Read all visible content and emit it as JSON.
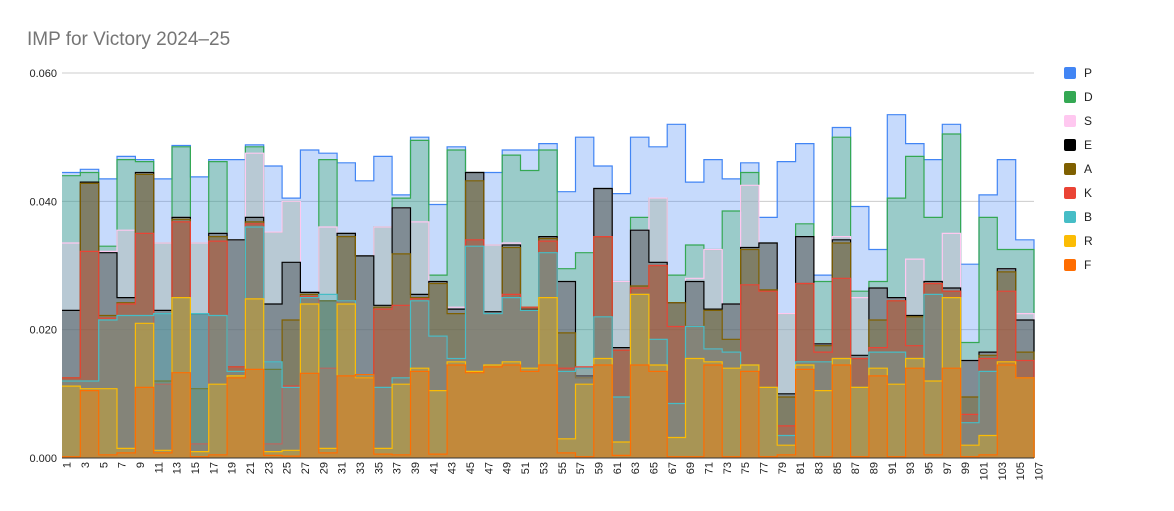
{
  "chart_data": {
    "type": "area",
    "title": "IMP for Victory 2024–25",
    "xlabel": "",
    "ylabel": "",
    "ylim": [
      0,
      0.06
    ],
    "y_ticks": [
      "0.000",
      "0.020",
      "0.040",
      "0.060"
    ],
    "x": [
      1,
      2,
      3,
      4,
      5,
      6,
      7,
      8,
      9,
      10,
      11,
      12,
      13,
      14,
      15,
      16,
      17,
      18,
      19,
      20,
      21,
      22,
      23,
      24,
      25,
      26,
      27,
      28,
      29,
      30,
      31,
      32,
      33,
      34,
      35,
      36,
      37,
      38,
      39,
      40,
      41,
      42,
      43,
      44,
      45,
      46,
      47,
      48,
      49,
      50,
      51,
      52,
      53,
      54,
      55,
      56,
      57,
      58,
      59,
      60,
      61,
      62,
      63,
      64,
      65,
      66,
      67,
      68,
      69,
      70,
      71,
      72,
      73,
      74,
      75,
      76,
      77,
      78,
      79,
      80,
      81,
      82,
      83,
      84,
      85,
      86,
      87,
      88,
      89,
      90,
      91,
      92,
      93,
      94,
      95,
      96,
      97,
      98,
      99,
      100,
      101,
      102,
      103,
      104,
      105,
      106
    ],
    "x_tick_labels": [
      "1",
      "3",
      "5",
      "7",
      "9",
      "11",
      "13",
      "15",
      "17",
      "19",
      "21",
      "23",
      "25",
      "27",
      "29",
      "31",
      "33",
      "35",
      "37",
      "39",
      "41",
      "43",
      "45",
      "47",
      "49",
      "51",
      "53",
      "55",
      "57",
      "59",
      "61",
      "63",
      "65",
      "67",
      "69",
      "71",
      "73",
      "75",
      "77",
      "79",
      "81",
      "83",
      "85",
      "87",
      "89",
      "91",
      "93",
      "95",
      "97",
      "99",
      "101",
      "103",
      "105",
      "107"
    ],
    "series": [
      {
        "name": "F",
        "color": "#ff6d01",
        "values": [
          0.0002,
          0.0002,
          0.0105,
          0.0105,
          0.0005,
          0.0005,
          0.0008,
          0.0008,
          0.011,
          0.011,
          0.0008,
          0.0008,
          0.0133,
          0.0133,
          0.0002,
          0.0002,
          0.0005,
          0.0005,
          0.0125,
          0.0125,
          0.0138,
          0.0138,
          0.0004,
          0.0004,
          0.0003,
          0.0003,
          0.0132,
          0.0132,
          0.0008,
          0.0008,
          0.0128,
          0.0128,
          0.013,
          0.013,
          0.0006,
          0.0006,
          0.0005,
          0.0005,
          0.0135,
          0.0135,
          0.0006,
          0.0006,
          0.0145,
          0.0145,
          0.0133,
          0.0133,
          0.0142,
          0.0142,
          0.0145,
          0.0145,
          0.0135,
          0.0135,
          0.0145,
          0.0145,
          0.0008,
          0.0008,
          0.0002,
          0.0002,
          0.0145,
          0.0145,
          0.0004,
          0.0004,
          0.0145,
          0.0145,
          0.0135,
          0.0135,
          0.0002,
          0.0002,
          0.0002,
          0.0002,
          0.0145,
          0.0145,
          0.0002,
          0.0002,
          0.0135,
          0.0135,
          0.0002,
          0.0002,
          0.0005,
          0.0005,
          0.0138,
          0.0138,
          0.0002,
          0.0002,
          0.0145,
          0.0145,
          0.0002,
          0.0002,
          0.0128,
          0.0128,
          0.0002,
          0.0002,
          0.014,
          0.014,
          0.0005,
          0.0005,
          0.014,
          0.014,
          0.0002,
          0.0002,
          0.0005,
          0.0005,
          0.0145,
          0.0145,
          0.0125,
          0.0125
        ]
      },
      {
        "name": "R",
        "color": "#fbbc04",
        "values": [
          0.0112,
          0.0112,
          0.0108,
          0.0108,
          0.0108,
          0.0108,
          0.0015,
          0.0015,
          0.021,
          0.021,
          0.0012,
          0.0012,
          0.025,
          0.025,
          0.001,
          0.001,
          0.0115,
          0.0115,
          0.0128,
          0.0128,
          0.0248,
          0.0248,
          0.001,
          0.001,
          0.0012,
          0.0012,
          0.024,
          0.024,
          0.0015,
          0.0015,
          0.024,
          0.024,
          0.0125,
          0.0125,
          0.0015,
          0.0015,
          0.0115,
          0.0115,
          0.014,
          0.014,
          0.0105,
          0.0105,
          0.015,
          0.015,
          0.0135,
          0.0135,
          0.0145,
          0.0145,
          0.015,
          0.015,
          0.014,
          0.014,
          0.025,
          0.025,
          0.003,
          0.003,
          0.0115,
          0.0115,
          0.0155,
          0.0155,
          0.0025,
          0.0025,
          0.0255,
          0.0255,
          0.0145,
          0.0145,
          0.0032,
          0.0032,
          0.0155,
          0.0155,
          0.015,
          0.015,
          0.014,
          0.014,
          0.0145,
          0.0145,
          0.011,
          0.011,
          0.002,
          0.002,
          0.0145,
          0.0145,
          0.0105,
          0.0105,
          0.0155,
          0.0155,
          0.011,
          0.011,
          0.014,
          0.014,
          0.0115,
          0.0115,
          0.0155,
          0.0155,
          0.012,
          0.012,
          0.025,
          0.025,
          0.002,
          0.002,
          0.0035,
          0.0035,
          0.015,
          0.015,
          0.0125,
          0.0125
        ]
      },
      {
        "name": "B",
        "color": "#46bdc6",
        "values": [
          0.012,
          0.012,
          0.012,
          0.012,
          0.0215,
          0.0215,
          0.0222,
          0.0222,
          0.0222,
          0.0222,
          0.0225,
          0.0225,
          0.025,
          0.025,
          0.0225,
          0.0225,
          0.0222,
          0.0222,
          0.0135,
          0.0135,
          0.036,
          0.036,
          0.015,
          0.015,
          0.011,
          0.011,
          0.025,
          0.025,
          0.0255,
          0.0255,
          0.0245,
          0.0245,
          0.0128,
          0.0128,
          0.011,
          0.011,
          0.0125,
          0.0125,
          0.0245,
          0.0245,
          0.019,
          0.019,
          0.0155,
          0.0155,
          0.033,
          0.033,
          0.0225,
          0.0225,
          0.025,
          0.025,
          0.023,
          0.023,
          0.032,
          0.032,
          0.0135,
          0.0135,
          0.014,
          0.014,
          0.022,
          0.022,
          0.0095,
          0.0095,
          0.0255,
          0.0255,
          0.0185,
          0.0185,
          0.0085,
          0.0085,
          0.0205,
          0.0205,
          0.017,
          0.017,
          0.0165,
          0.0165,
          0.0145,
          0.0145,
          0.011,
          0.011,
          0.0035,
          0.0035,
          0.015,
          0.015,
          0.015,
          0.015,
          0.0155,
          0.0155,
          0.011,
          0.011,
          0.0165,
          0.0165,
          0.0165,
          0.0165,
          0.0155,
          0.0155,
          0.0255,
          0.0255,
          0.025,
          0.025,
          0.0055,
          0.0055,
          0.0135,
          0.0135,
          0.0145,
          0.0145,
          0.0125,
          0.0125
        ]
      },
      {
        "name": "K",
        "color": "#ea4335",
        "values": [
          0.0125,
          0.0125,
          0.0322,
          0.0322,
          0.0218,
          0.0218,
          0.024,
          0.024,
          0.035,
          0.035,
          0.0115,
          0.0115,
          0.0368,
          0.0368,
          0.0022,
          0.0022,
          0.0338,
          0.0338,
          0.0142,
          0.0142,
          0.0365,
          0.0365,
          0.0022,
          0.0022,
          0.0112,
          0.0112,
          0.0252,
          0.0252,
          0.014,
          0.014,
          0.0245,
          0.0245,
          0.0128,
          0.0128,
          0.0232,
          0.0232,
          0.0238,
          0.0238,
          0.0248,
          0.0248,
          0.019,
          0.019,
          0.0155,
          0.0155,
          0.034,
          0.034,
          0.0225,
          0.0225,
          0.0255,
          0.0255,
          0.0235,
          0.0235,
          0.0338,
          0.0338,
          0.014,
          0.014,
          0.0142,
          0.0142,
          0.0345,
          0.0345,
          0.0168,
          0.0168,
          0.0265,
          0.0265,
          0.03,
          0.03,
          0.0205,
          0.0205,
          0.0205,
          0.0205,
          0.017,
          0.017,
          0.0165,
          0.0165,
          0.027,
          0.027,
          0.026,
          0.026,
          0.005,
          0.005,
          0.0272,
          0.0272,
          0.0165,
          0.0165,
          0.028,
          0.028,
          0.0155,
          0.0155,
          0.0172,
          0.0172,
          0.0245,
          0.0245,
          0.0175,
          0.0175,
          0.0272,
          0.0272,
          0.026,
          0.026,
          0.0068,
          0.0068,
          0.0155,
          0.0155,
          0.026,
          0.026,
          0.0152,
          0.0152
        ]
      },
      {
        "name": "A",
        "color": "#7f6000",
        "values": [
          0.0125,
          0.0125,
          0.0428,
          0.0428,
          0.0222,
          0.0222,
          0.0242,
          0.0242,
          0.0442,
          0.0442,
          0.012,
          0.012,
          0.0372,
          0.0372,
          0.0108,
          0.0108,
          0.0345,
          0.0345,
          0.0142,
          0.0142,
          0.0368,
          0.0368,
          0.0138,
          0.0138,
          0.0215,
          0.0215,
          0.0255,
          0.0255,
          0.0245,
          0.0245,
          0.0345,
          0.0345,
          0.0128,
          0.0128,
          0.0235,
          0.0235,
          0.0318,
          0.0318,
          0.025,
          0.025,
          0.0272,
          0.0272,
          0.0225,
          0.0225,
          0.0432,
          0.0432,
          0.0225,
          0.0225,
          0.0328,
          0.0328,
          0.0235,
          0.0235,
          0.0342,
          0.0342,
          0.0195,
          0.0195,
          0.0125,
          0.0125,
          0.0345,
          0.0345,
          0.0168,
          0.0168,
          0.0268,
          0.0268,
          0.03,
          0.03,
          0.0242,
          0.0242,
          0.0205,
          0.0205,
          0.023,
          0.023,
          0.0185,
          0.0185,
          0.0325,
          0.0325,
          0.0262,
          0.0262,
          0.0095,
          0.0095,
          0.0272,
          0.0272,
          0.0175,
          0.0175,
          0.0335,
          0.0335,
          0.0155,
          0.0155,
          0.0215,
          0.0215,
          0.0245,
          0.0245,
          0.022,
          0.022,
          0.0272,
          0.0272,
          0.026,
          0.026,
          0.0095,
          0.0095,
          0.016,
          0.016,
          0.029,
          0.029,
          0.0165,
          0.0165
        ]
      },
      {
        "name": "E",
        "color": "#000000",
        "values": [
          0.023,
          0.023,
          0.043,
          0.043,
          0.032,
          0.032,
          0.025,
          0.025,
          0.0445,
          0.0445,
          0.023,
          0.023,
          0.0375,
          0.0375,
          0.0225,
          0.0225,
          0.035,
          0.035,
          0.034,
          0.034,
          0.0375,
          0.0375,
          0.024,
          0.024,
          0.0305,
          0.0305,
          0.0258,
          0.0258,
          0.0245,
          0.0245,
          0.035,
          0.035,
          0.0315,
          0.0315,
          0.0238,
          0.0238,
          0.039,
          0.039,
          0.0255,
          0.0255,
          0.0275,
          0.0275,
          0.0232,
          0.0232,
          0.0445,
          0.0445,
          0.0228,
          0.0228,
          0.0332,
          0.0332,
          0.0232,
          0.0232,
          0.0345,
          0.0345,
          0.0275,
          0.0275,
          0.0128,
          0.0128,
          0.042,
          0.042,
          0.0172,
          0.0172,
          0.0355,
          0.0355,
          0.0305,
          0.0305,
          0.0242,
          0.0242,
          0.0275,
          0.0275,
          0.0232,
          0.0232,
          0.024,
          0.024,
          0.0328,
          0.0328,
          0.0335,
          0.0335,
          0.01,
          0.01,
          0.0345,
          0.0345,
          0.0178,
          0.0178,
          0.034,
          0.034,
          0.016,
          0.016,
          0.0265,
          0.0265,
          0.025,
          0.025,
          0.0222,
          0.0222,
          0.0275,
          0.0275,
          0.0265,
          0.0265,
          0.0152,
          0.0152,
          0.0165,
          0.0165,
          0.0295,
          0.0295,
          0.0215,
          0.0215
        ]
      },
      {
        "name": "S",
        "color": "#ffc8f0",
        "values": [
          0.0335,
          0.0335,
          0.043,
          0.043,
          0.0322,
          0.0322,
          0.0355,
          0.0355,
          0.0445,
          0.0445,
          0.0335,
          0.0335,
          0.0375,
          0.0375,
          0.0335,
          0.0335,
          0.035,
          0.035,
          0.034,
          0.034,
          0.0475,
          0.0475,
          0.0352,
          0.0352,
          0.04,
          0.04,
          0.0258,
          0.0258,
          0.036,
          0.036,
          0.035,
          0.035,
          0.0315,
          0.0315,
          0.036,
          0.036,
          0.039,
          0.039,
          0.0368,
          0.0368,
          0.0275,
          0.0275,
          0.0235,
          0.0235,
          0.0445,
          0.0445,
          0.0332,
          0.0332,
          0.0335,
          0.0335,
          0.0232,
          0.0232,
          0.0345,
          0.0345,
          0.0275,
          0.0275,
          0.0128,
          0.0128,
          0.042,
          0.042,
          0.0275,
          0.0275,
          0.0355,
          0.0355,
          0.0405,
          0.0405,
          0.0242,
          0.0242,
          0.028,
          0.028,
          0.0325,
          0.0325,
          0.024,
          0.024,
          0.0425,
          0.0425,
          0.0335,
          0.0335,
          0.0225,
          0.0225,
          0.0345,
          0.0345,
          0.0178,
          0.0178,
          0.0345,
          0.0345,
          0.025,
          0.025,
          0.0265,
          0.0265,
          0.025,
          0.025,
          0.031,
          0.031,
          0.0275,
          0.0275,
          0.035,
          0.035,
          0.0152,
          0.0152,
          0.0165,
          0.0165,
          0.0295,
          0.0295,
          0.0225,
          0.0225
        ]
      },
      {
        "name": "D",
        "color": "#34a853",
        "values": [
          0.044,
          0.044,
          0.0445,
          0.0445,
          0.033,
          0.033,
          0.0465,
          0.0465,
          0.0462,
          0.0462,
          0.0335,
          0.0335,
          0.0485,
          0.0485,
          0.0335,
          0.0335,
          0.0462,
          0.0462,
          0.034,
          0.034,
          0.0485,
          0.0485,
          0.0352,
          0.0352,
          0.04,
          0.04,
          0.0258,
          0.0258,
          0.0465,
          0.0465,
          0.035,
          0.035,
          0.0315,
          0.0315,
          0.036,
          0.036,
          0.0405,
          0.0405,
          0.0495,
          0.0495,
          0.0285,
          0.0285,
          0.048,
          0.048,
          0.0445,
          0.0445,
          0.0332,
          0.0332,
          0.0472,
          0.0472,
          0.0448,
          0.0448,
          0.048,
          0.048,
          0.0295,
          0.0295,
          0.032,
          0.032,
          0.042,
          0.042,
          0.0275,
          0.0275,
          0.0375,
          0.0375,
          0.0405,
          0.0405,
          0.0285,
          0.0285,
          0.0332,
          0.0332,
          0.0325,
          0.0325,
          0.0385,
          0.0385,
          0.0445,
          0.0445,
          0.0335,
          0.0335,
          0.0225,
          0.0225,
          0.0365,
          0.0365,
          0.0275,
          0.0275,
          0.05,
          0.05,
          0.026,
          0.026,
          0.0275,
          0.0275,
          0.0405,
          0.0405,
          0.047,
          0.047,
          0.0375,
          0.0375,
          0.0505,
          0.0505,
          0.018,
          0.018,
          0.0375,
          0.0375,
          0.0325,
          0.0325,
          0.0325,
          0.0325
        ]
      },
      {
        "name": "P",
        "color": "#4285f4",
        "values": [
          0.0445,
          0.0445,
          0.045,
          0.045,
          0.0435,
          0.0435,
          0.047,
          0.047,
          0.0465,
          0.0465,
          0.0435,
          0.0435,
          0.0487,
          0.0487,
          0.0438,
          0.0438,
          0.0465,
          0.0465,
          0.0465,
          0.0465,
          0.0488,
          0.0488,
          0.0455,
          0.0455,
          0.0405,
          0.0405,
          0.048,
          0.048,
          0.0475,
          0.0475,
          0.046,
          0.046,
          0.0432,
          0.0432,
          0.047,
          0.047,
          0.041,
          0.041,
          0.05,
          0.05,
          0.0395,
          0.0395,
          0.0485,
          0.0485,
          0.0445,
          0.0445,
          0.0445,
          0.0445,
          0.048,
          0.048,
          0.048,
          0.048,
          0.049,
          0.049,
          0.0415,
          0.0415,
          0.05,
          0.05,
          0.0455,
          0.0455,
          0.0412,
          0.0412,
          0.05,
          0.05,
          0.0485,
          0.0485,
          0.052,
          0.052,
          0.043,
          0.043,
          0.0465,
          0.0465,
          0.0435,
          0.0435,
          0.046,
          0.046,
          0.0375,
          0.0375,
          0.0462,
          0.0462,
          0.049,
          0.049,
          0.0285,
          0.0285,
          0.0515,
          0.0515,
          0.0392,
          0.0392,
          0.0325,
          0.0325,
          0.0535,
          0.0535,
          0.049,
          0.049,
          0.0465,
          0.0465,
          0.052,
          0.052,
          0.0302,
          0.0302,
          0.041,
          0.041,
          0.0465,
          0.0465,
          0.034,
          0.034
        ]
      }
    ],
    "legend": {
      "position": "right",
      "entries": [
        "P",
        "D",
        "S",
        "E",
        "A",
        "K",
        "B",
        "R",
        "F"
      ]
    },
    "grid": true
  }
}
